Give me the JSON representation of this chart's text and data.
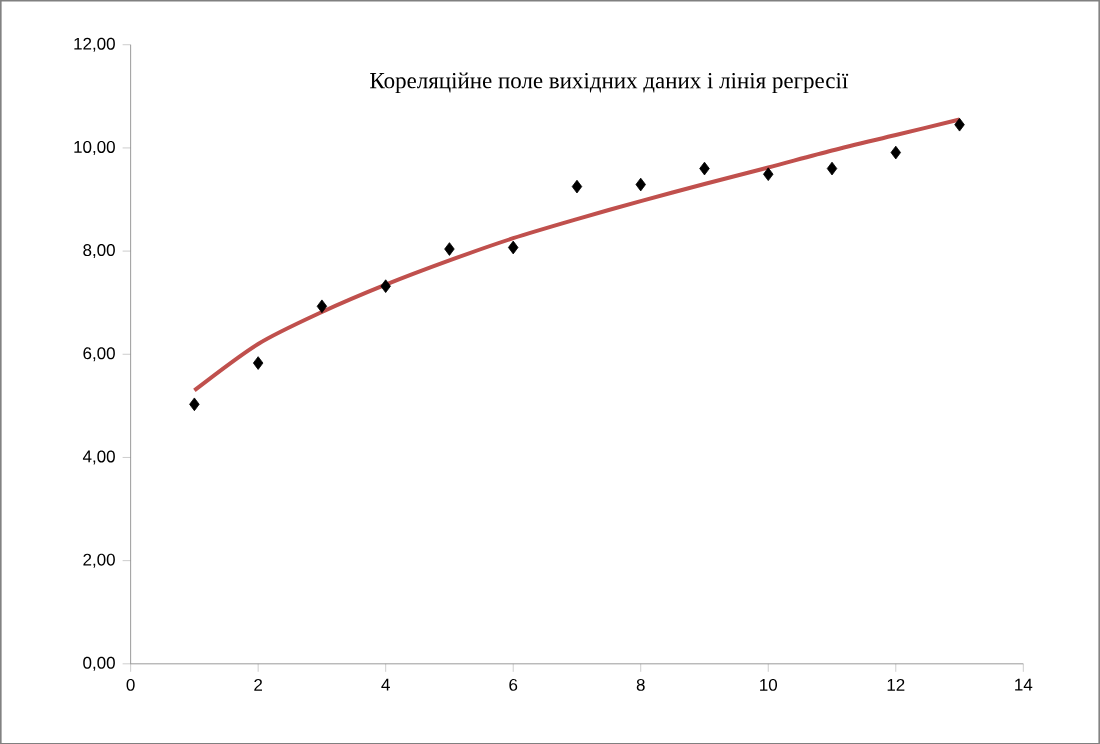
{
  "chart_data": {
    "type": "scatter",
    "title": "Кореляційне поле вихідних даних і  лінія регресії",
    "xlim": [
      0,
      14
    ],
    "xticks": [
      0,
      2,
      4,
      6,
      8,
      10,
      12,
      14
    ],
    "ylim": [
      0,
      12
    ],
    "yticks": [
      {
        "value": 0,
        "label": "0,00"
      },
      {
        "value": 2,
        "label": "2,00"
      },
      {
        "value": 4,
        "label": "4,00"
      },
      {
        "value": 6,
        "label": "6,00"
      },
      {
        "value": 8,
        "label": "8,00"
      },
      {
        "value": 10,
        "label": "10,00"
      },
      {
        "value": 12,
        "label": "12,00"
      }
    ],
    "grid": false,
    "series": [
      {
        "marker": "diamond",
        "color": "#000000",
        "x": [
          1,
          2,
          3,
          4,
          5,
          6,
          7,
          8,
          9,
          10,
          11,
          12,
          13
        ],
        "values": [
          5.03,
          5.83,
          6.93,
          7.32,
          8.04,
          8.07,
          9.25,
          9.29,
          9.6,
          9.49,
          9.6,
          9.91,
          10.45
        ]
      },
      {
        "type": "line",
        "marker": "none",
        "line_style": "solid",
        "color": "#c0504d",
        "x": [
          1,
          2,
          3,
          4,
          5,
          6,
          7,
          8,
          9,
          10,
          11,
          12,
          13
        ],
        "values": [
          5.3,
          6.2,
          6.82,
          7.35,
          7.82,
          8.25,
          8.62,
          8.97,
          9.3,
          9.62,
          9.95,
          10.25,
          10.55
        ]
      }
    ]
  }
}
